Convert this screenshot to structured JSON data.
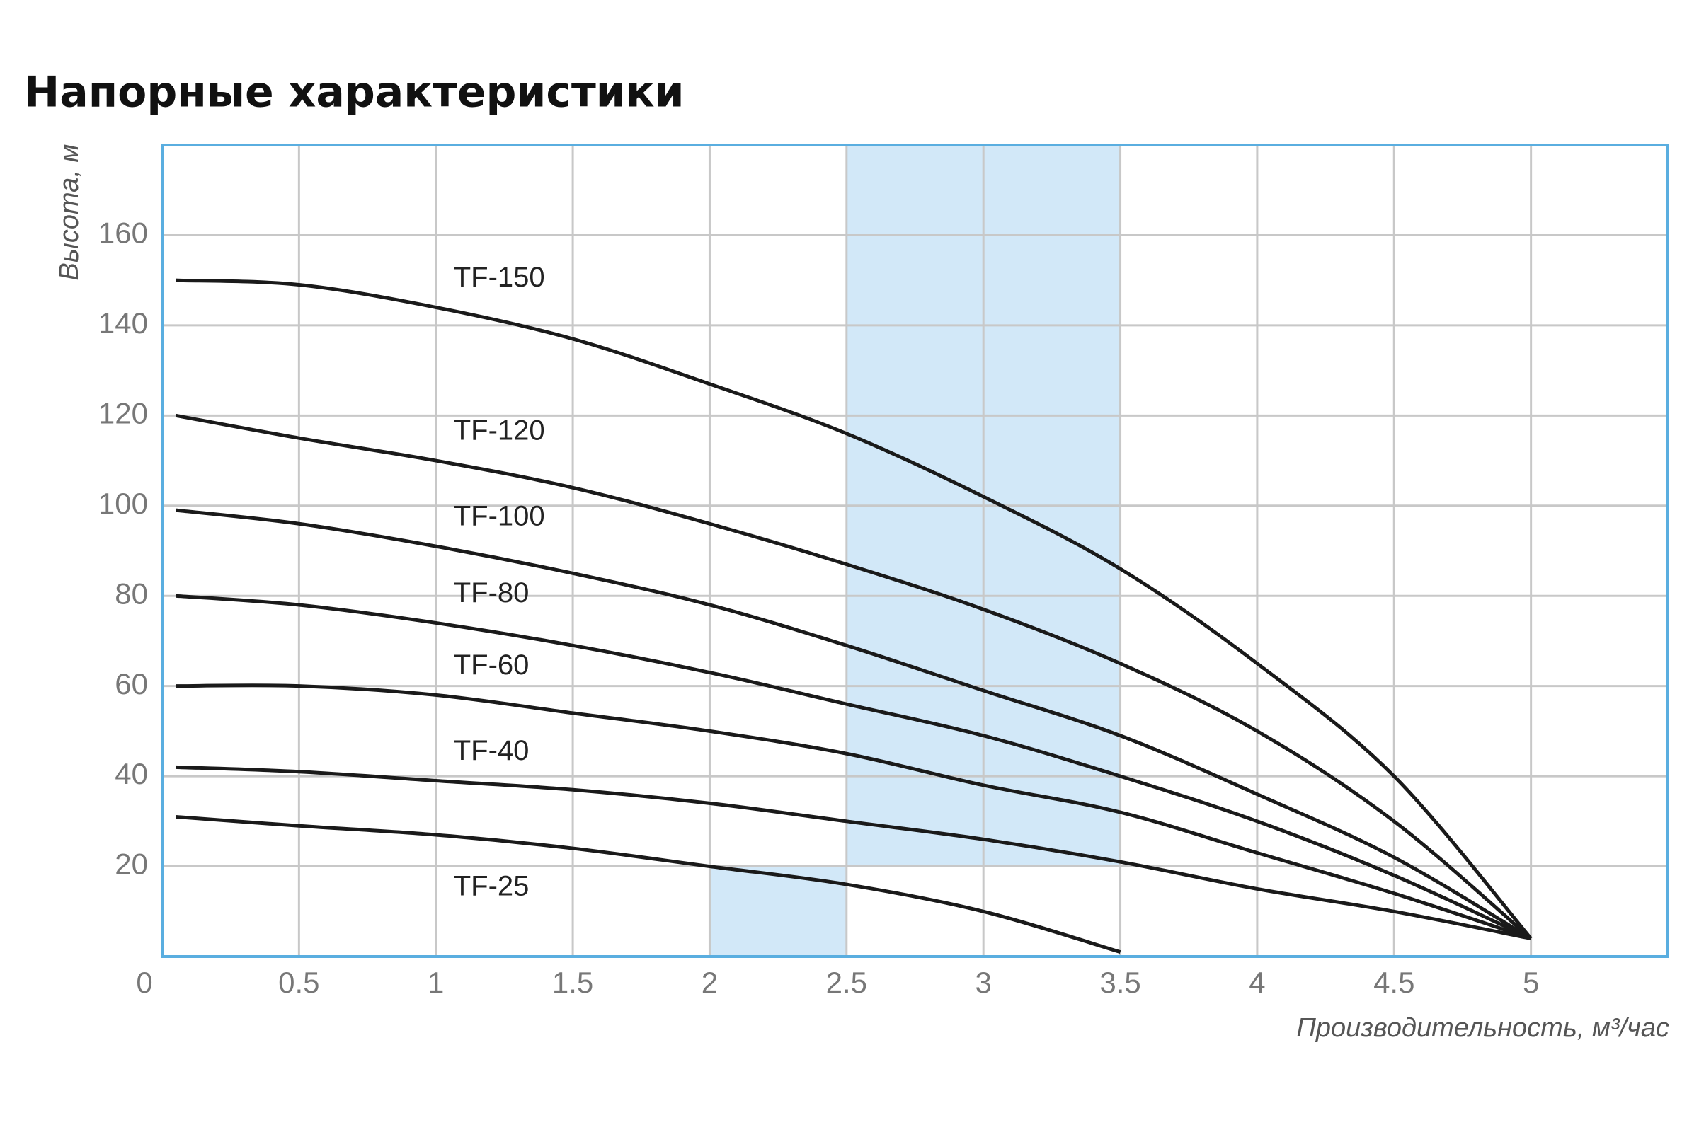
{
  "chart_data": {
    "type": "line",
    "title": "Напорные характеристики",
    "x_label": "Производительность, м³/час",
    "y_label": "Высота, м",
    "xlim": [
      0,
      5.5
    ],
    "ylim": [
      0,
      180
    ],
    "xticks": [
      0,
      0.5,
      1,
      1.5,
      2,
      2.5,
      3,
      3.5,
      4,
      4.5,
      5
    ],
    "yticks": [
      20,
      40,
      60,
      80,
      100,
      120,
      140,
      160
    ],
    "grid": true,
    "border_color": "#5aaee0",
    "highlight_color": "#d2e8f8",
    "highlight_regions": [
      {
        "x": [
          2.5,
          3.5
        ],
        "y": [
          20,
          180
        ]
      },
      {
        "x": [
          2,
          2.5
        ],
        "y": [
          0,
          20
        ]
      }
    ],
    "x": [
      0.05,
      0.5,
      1,
      1.5,
      2,
      2.5,
      3,
      3.5,
      4,
      4.5,
      5
    ],
    "series": [
      {
        "name": "TF-150",
        "color": "#1a1a1a",
        "values": [
          150,
          149,
          144,
          137,
          127,
          116,
          102,
          86,
          65,
          40,
          4
        ]
      },
      {
        "name": "TF-120",
        "color": "#1a1a1a",
        "values": [
          120,
          115,
          110,
          104,
          96,
          87,
          77,
          65,
          50,
          30,
          4
        ]
      },
      {
        "name": "TF-100",
        "color": "#1a1a1a",
        "values": [
          99,
          96,
          91,
          85,
          78,
          69,
          59,
          49,
          36,
          22,
          4
        ]
      },
      {
        "name": "TF-80",
        "color": "#1a1a1a",
        "values": [
          80,
          78,
          74,
          69,
          63,
          56,
          49,
          40,
          30,
          18,
          4
        ]
      },
      {
        "name": "TF-60",
        "color": "#1a1a1a",
        "values": [
          60,
          60,
          58,
          54,
          50,
          45,
          38,
          32,
          23,
          14,
          4
        ]
      },
      {
        "name": "TF-40",
        "color": "#1a1a1a",
        "values": [
          42,
          41,
          39,
          37,
          34,
          30,
          26,
          21,
          15,
          10,
          4
        ]
      },
      {
        "name": "TF-25",
        "color": "#1a1a1a",
        "values": [
          31,
          29,
          27,
          24,
          20,
          16,
          10,
          1,
          null,
          null,
          null
        ]
      }
    ]
  }
}
